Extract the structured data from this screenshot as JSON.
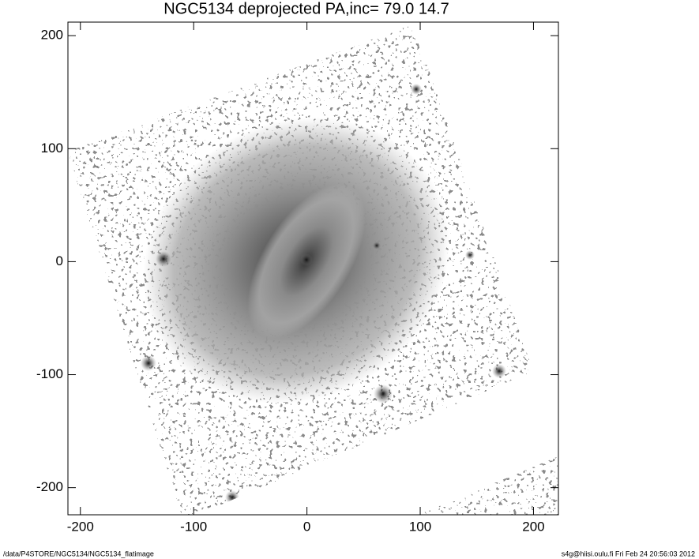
{
  "chart_data": {
    "type": "image",
    "title": "NGC5134 deprojected  PA,inc=  79.0  14.7",
    "xlim": [
      -211,
      222
    ],
    "ylim": [
      -224,
      212
    ],
    "xticks": [
      -200,
      -100,
      0,
      100,
      200
    ],
    "yticks": [
      -200,
      -100,
      0,
      100,
      200
    ],
    "footer_left": "/data/P4STORE/NGC5134/NGC5134_flatimage",
    "footer_right": "s4g@hiisi.oulu.fi  Fri Feb 24 20:56:03 2012"
  }
}
